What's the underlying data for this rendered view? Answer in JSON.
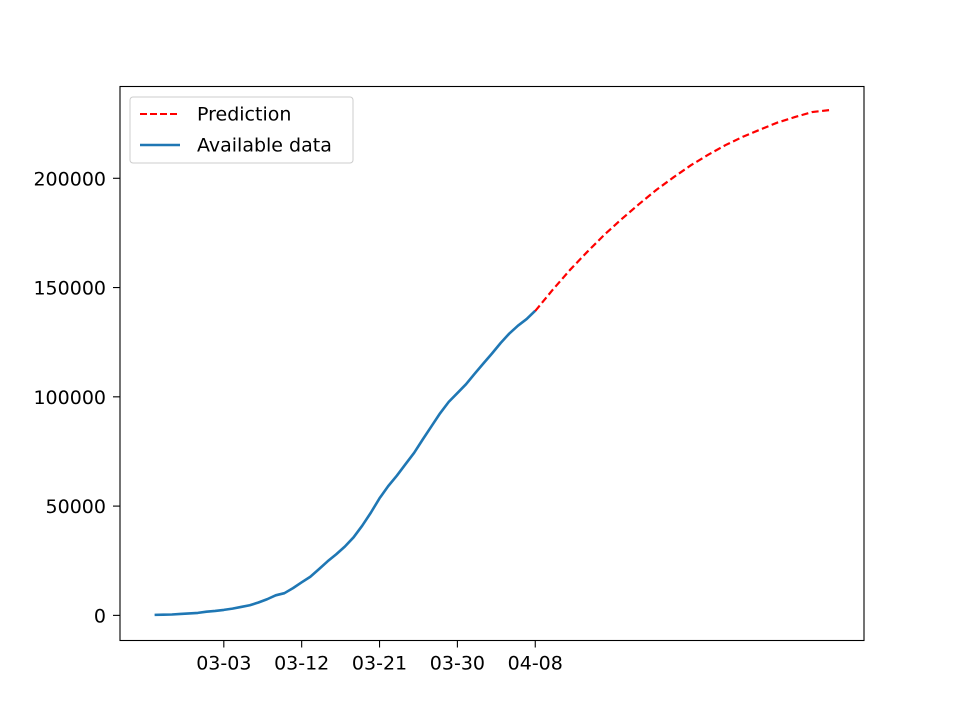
{
  "chart_data": {
    "type": "line",
    "title": "",
    "xlabel": "",
    "ylabel": "",
    "xlim": [
      "02-20",
      "05-16"
    ],
    "ylim": [
      -11500,
      242000
    ],
    "x_ticks": [
      "03-03",
      "03-12",
      "03-21",
      "03-30",
      "04-08"
    ],
    "y_ticks": [
      0,
      50000,
      100000,
      150000,
      200000
    ],
    "legend": {
      "position": "top-left",
      "entries": [
        "Prediction",
        "Available data"
      ]
    },
    "grid": false,
    "series": [
      {
        "name": "Prediction",
        "style": "dashed",
        "color": "#ff0000",
        "x": [
          "04-08",
          "04-10",
          "04-12",
          "04-14",
          "04-16",
          "04-18",
          "04-20",
          "04-22",
          "04-24",
          "04-26",
          "04-28",
          "04-30",
          "05-02",
          "05-04",
          "05-06",
          "05-08",
          "05-10",
          "05-12"
        ],
        "y": [
          139300,
          148900,
          158000,
          166300,
          174200,
          181400,
          188200,
          194700,
          200500,
          206000,
          210800,
          215200,
          219000,
          222300,
          225500,
          228000,
          230300,
          231200
        ]
      },
      {
        "name": "Available data",
        "style": "solid",
        "color": "#1f77b4",
        "x": [
          "02-24",
          "02-25",
          "02-26",
          "02-27",
          "02-28",
          "02-29",
          "03-01",
          "03-02",
          "03-03",
          "03-04",
          "03-05",
          "03-06",
          "03-07",
          "03-08",
          "03-09",
          "03-10",
          "03-11",
          "03-12",
          "03-13",
          "03-14",
          "03-15",
          "03-16",
          "03-17",
          "03-18",
          "03-19",
          "03-20",
          "03-21",
          "03-22",
          "03-23",
          "03-24",
          "03-25",
          "03-26",
          "03-27",
          "03-28",
          "03-29",
          "03-30",
          "03-31",
          "04-01",
          "04-02",
          "04-03",
          "04-04",
          "04-05",
          "04-06",
          "04-07",
          "04-08"
        ],
        "y": [
          229,
          322,
          400,
          650,
          888,
          1128,
          1694,
          2036,
          2502,
          3089,
          3858,
          4636,
          5883,
          7375,
          9172,
          10149,
          12462,
          15113,
          17660,
          21157,
          24747,
          27980,
          31506,
          35713,
          41035,
          47021,
          53578,
          59138,
          63927,
          69176,
          74386,
          80539,
          86498,
          92472,
          97689,
          101739,
          105792,
          110574,
          115242,
          119827,
          124632,
          128948,
          132547,
          135586,
          139422
        ]
      }
    ]
  }
}
